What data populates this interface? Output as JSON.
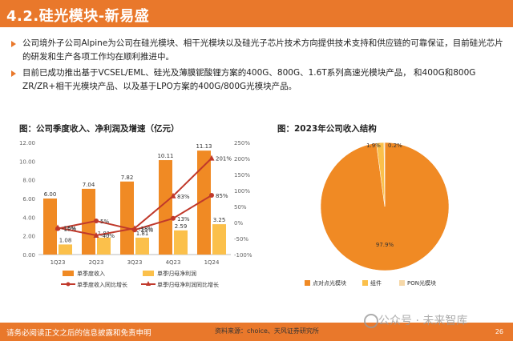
{
  "title": "4.2.硅光模块-新易盛",
  "bullets": [
    "公司境外子公司Alpine为公司在硅光模块、相干光模块以及硅光子芯片技术方向提供技术支持和供应链的可靠保证，目前硅光芯片的研发和生产各项工作均在顺利推进中。",
    "目前已成功推出基于VCSEL/EML、硅光及薄膜铌酸锂方案的400G、800G、1.6T系列高速光模块产品， 和400G和800G ZR/ZR+相干光模块产品、以及基于LPO方案的400G/800G光模块产品。"
  ],
  "chart1": {
    "title": "图：公司季度收入、净利润及增速（亿元）",
    "chart_data": {
      "type": "bar",
      "categories": [
        "1Q23",
        "2Q23",
        "3Q23",
        "4Q23",
        "1Q24"
      ],
      "series": [
        {
          "name": "单季度收入",
          "type": "bar",
          "axis": "left",
          "values": [
            6.0,
            7.04,
            7.82,
            10.11,
            11.13
          ]
        },
        {
          "name": "单季归母净利润",
          "type": "bar",
          "axis": "left",
          "values": [
            1.08,
            1.81,
            1.81,
            2.59,
            3.25
          ]
        },
        {
          "name": "单季度收入同比增长",
          "type": "line",
          "axis": "right",
          "values": [
            -19,
            5,
            -23,
            13,
            85
          ]
        },
        {
          "name": "单季归母净利润同比增长",
          "type": "line",
          "axis": "right",
          "values": [
            -16,
            -40,
            -18,
            83,
            201
          ]
        }
      ],
      "value_labels": {
        "revenue": [
          "6.00",
          "7.04",
          "7.82",
          "10.11",
          "11.13"
        ],
        "profit": [
          "1.08",
          "1.81",
          "1.81",
          "2.59",
          "3.25"
        ],
        "rev_growth": [
          "-19%",
          "5%",
          "-23%",
          "13%",
          "85%"
        ],
        "profit_growth": [
          "-16%",
          "-40%",
          "-18%",
          "83%",
          "201%"
        ]
      },
      "ylim_left": [
        0,
        12
      ],
      "yticks_left": [
        "0.00",
        "2.00",
        "4.00",
        "6.00",
        "8.00",
        "10.00",
        "12.00"
      ],
      "ylim_right": [
        -100,
        250
      ],
      "yticks_right": [
        "-100%",
        "-50%",
        "0%",
        "50%",
        "100%",
        "150%",
        "200%",
        "250%"
      ]
    }
  },
  "chart2": {
    "title": "图：2023年公司收入结构",
    "chart_data": {
      "type": "pie",
      "labels": [
        "点对点光模块",
        "组件",
        "PON光模块"
      ],
      "values": [
        97.9,
        1.9,
        0.2
      ],
      "value_labels": [
        "97.9%",
        "1.9%",
        "0.2%"
      ]
    }
  },
  "colors": {
    "accent": "#e9782b",
    "revenue": "#f08a24",
    "profit": "#fbc04b",
    "rev_growth": "#c0392b",
    "profit_growth": "#c0392b",
    "pie_main": "#f08a24",
    "pie_second": "#fbc04b",
    "pie_third": "#f6d8a8"
  },
  "footer": {
    "disclaimer": "请务必阅读正文之后的信息披露和免责申明",
    "source": "资料来源：choice、天风证券研究所",
    "page": "26",
    "watermark": "公众号 · 未来智库"
  }
}
